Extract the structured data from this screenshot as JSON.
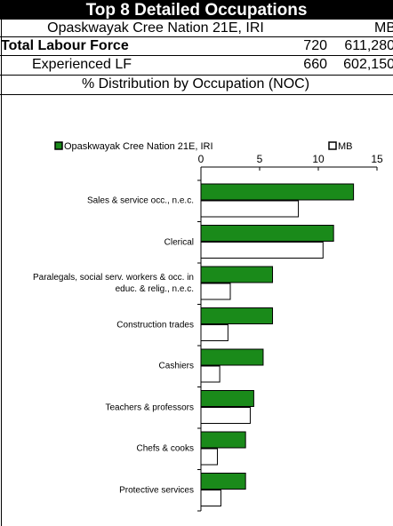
{
  "table": {
    "title": "Top 8 Detailed Occupations",
    "columns": [
      "Opaskwayak Cree Nation 21E, IRI",
      "MB"
    ],
    "rows": [
      [
        "Total Labour Force",
        "720",
        "611,280"
      ],
      [
        "Experienced LF",
        "660",
        "602,150"
      ]
    ],
    "section": "% Distribution by Occupation (NOC)"
  },
  "chart_data": {
    "type": "bar",
    "orientation": "horizontal",
    "categories": [
      "Sales & service occ., n.e.c.",
      "Clerical",
      "Paralegals, social serv. workers & occ. in educ. & relig., n.e.c.",
      "Construction trades",
      "Cashiers",
      "Teachers & professors",
      "Chefs & cooks",
      "Protective services"
    ],
    "series": [
      {
        "name": "Opaskwayak Cree Nation 21E, IRI",
        "color": "#1a8a1a",
        "values": [
          13.0,
          11.3,
          6.1,
          6.1,
          5.3,
          4.5,
          3.8,
          3.8
        ]
      },
      {
        "name": "MB",
        "color": "#ffffff",
        "values": [
          8.3,
          10.4,
          2.5,
          2.3,
          1.6,
          4.2,
          1.4,
          1.7
        ]
      }
    ],
    "xlim": [
      0,
      15
    ],
    "xticks": [
      0,
      5,
      10,
      15
    ],
    "legend": "top"
  }
}
